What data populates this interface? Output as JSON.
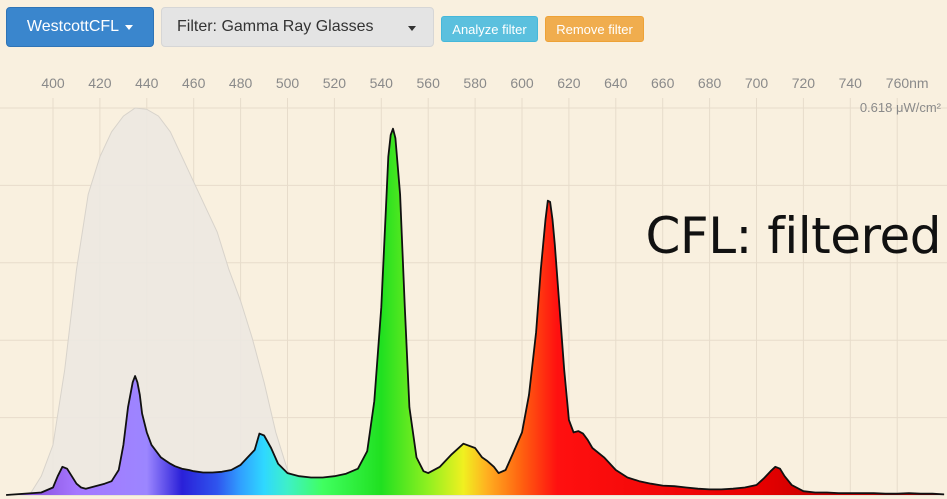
{
  "toolbar": {
    "source_button": {
      "label": "WestcottCFL"
    },
    "filter_button": {
      "label": "Filter: Gamma Ray Glasses"
    },
    "analyze_button": {
      "label": "Analyze filter"
    },
    "remove_button": {
      "label": "Remove filter"
    }
  },
  "overlay_label": "CFL: filtered",
  "colors": {
    "background": "#f9f0df",
    "grid": "#e7dccb",
    "axis_text": "#8a8a8a",
    "filter_curve": "#ece8e1",
    "trace": "#111111"
  },
  "chart_data": {
    "type": "area",
    "title": "",
    "xlabel": "",
    "ylabel": "",
    "x_unit": "nm",
    "xlim": [
      380,
      780
    ],
    "ylim": [
      0,
      0.618
    ],
    "y_max_label": "0.618 μW/cm²",
    "x_ticks": [
      "400",
      "420",
      "440",
      "460",
      "480",
      "500",
      "520",
      "540",
      "560",
      "580",
      "600",
      "620",
      "640",
      "660",
      "680",
      "700",
      "720",
      "740",
      "760nm"
    ],
    "grid": true,
    "series": [
      {
        "role": "filter-transmission",
        "x": [
          380,
          390,
          395,
          400,
          405,
          410,
          415,
          420,
          425,
          430,
          435,
          440,
          445,
          450,
          455,
          460,
          465,
          470,
          475,
          480,
          485,
          490,
          495,
          500,
          505,
          510,
          780
        ],
        "y": [
          0.0,
          0.0,
          0.03,
          0.08,
          0.2,
          0.36,
          0.48,
          0.54,
          0.58,
          0.605,
          0.618,
          0.616,
          0.605,
          0.58,
          0.54,
          0.5,
          0.46,
          0.42,
          0.36,
          0.31,
          0.25,
          0.18,
          0.1,
          0.04,
          0.01,
          0.0,
          0.0
        ]
      },
      {
        "role": "filtered-spectrum",
        "x": [
          380,
          395,
          400,
          402,
          404,
          406,
          408,
          410,
          412,
          414,
          416,
          418,
          420,
          422,
          425,
          428,
          430,
          432,
          434,
          435,
          436,
          437,
          438,
          440,
          442,
          444,
          446,
          448,
          450,
          452,
          455,
          458,
          460,
          464,
          468,
          472,
          476,
          480,
          483,
          486,
          488,
          490,
          493,
          496,
          500,
          505,
          510,
          515,
          520,
          525,
          530,
          534,
          537,
          540,
          542,
          543,
          544,
          545,
          546,
          548,
          550,
          552,
          555,
          558,
          560,
          565,
          570,
          575,
          580,
          583,
          585,
          588,
          590,
          593,
          596,
          600,
          603,
          606,
          608,
          610,
          611,
          612,
          613,
          614,
          616,
          618,
          620,
          622,
          624,
          626,
          628,
          630,
          635,
          640,
          645,
          650,
          655,
          660,
          665,
          670,
          675,
          680,
          685,
          690,
          695,
          700,
          703,
          706,
          708,
          710,
          712,
          715,
          720,
          725,
          730,
          735,
          740,
          745,
          750,
          755,
          760,
          765,
          770,
          775,
          780
        ],
        "y": [
          0.0,
          0.004,
          0.012,
          0.03,
          0.045,
          0.042,
          0.03,
          0.018,
          0.012,
          0.01,
          0.012,
          0.014,
          0.016,
          0.018,
          0.022,
          0.04,
          0.08,
          0.14,
          0.18,
          0.19,
          0.18,
          0.16,
          0.13,
          0.1,
          0.08,
          0.07,
          0.06,
          0.055,
          0.05,
          0.046,
          0.042,
          0.04,
          0.038,
          0.036,
          0.036,
          0.037,
          0.04,
          0.048,
          0.06,
          0.072,
          0.098,
          0.095,
          0.075,
          0.05,
          0.035,
          0.03,
          0.028,
          0.028,
          0.03,
          0.034,
          0.042,
          0.07,
          0.15,
          0.3,
          0.46,
          0.54,
          0.575,
          0.585,
          0.57,
          0.48,
          0.3,
          0.14,
          0.06,
          0.038,
          0.035,
          0.045,
          0.065,
          0.082,
          0.075,
          0.06,
          0.055,
          0.045,
          0.035,
          0.04,
          0.065,
          0.1,
          0.16,
          0.26,
          0.36,
          0.44,
          0.47,
          0.468,
          0.44,
          0.4,
          0.3,
          0.2,
          0.12,
          0.1,
          0.102,
          0.098,
          0.088,
          0.075,
          0.06,
          0.04,
          0.028,
          0.022,
          0.018,
          0.015,
          0.014,
          0.012,
          0.01,
          0.009,
          0.009,
          0.01,
          0.012,
          0.016,
          0.026,
          0.038,
          0.045,
          0.042,
          0.03,
          0.016,
          0.006,
          0.004,
          0.004,
          0.003,
          0.003,
          0.003,
          0.003,
          0.002,
          0.002,
          0.003,
          0.002,
          0.002,
          0.001
        ]
      }
    ]
  }
}
